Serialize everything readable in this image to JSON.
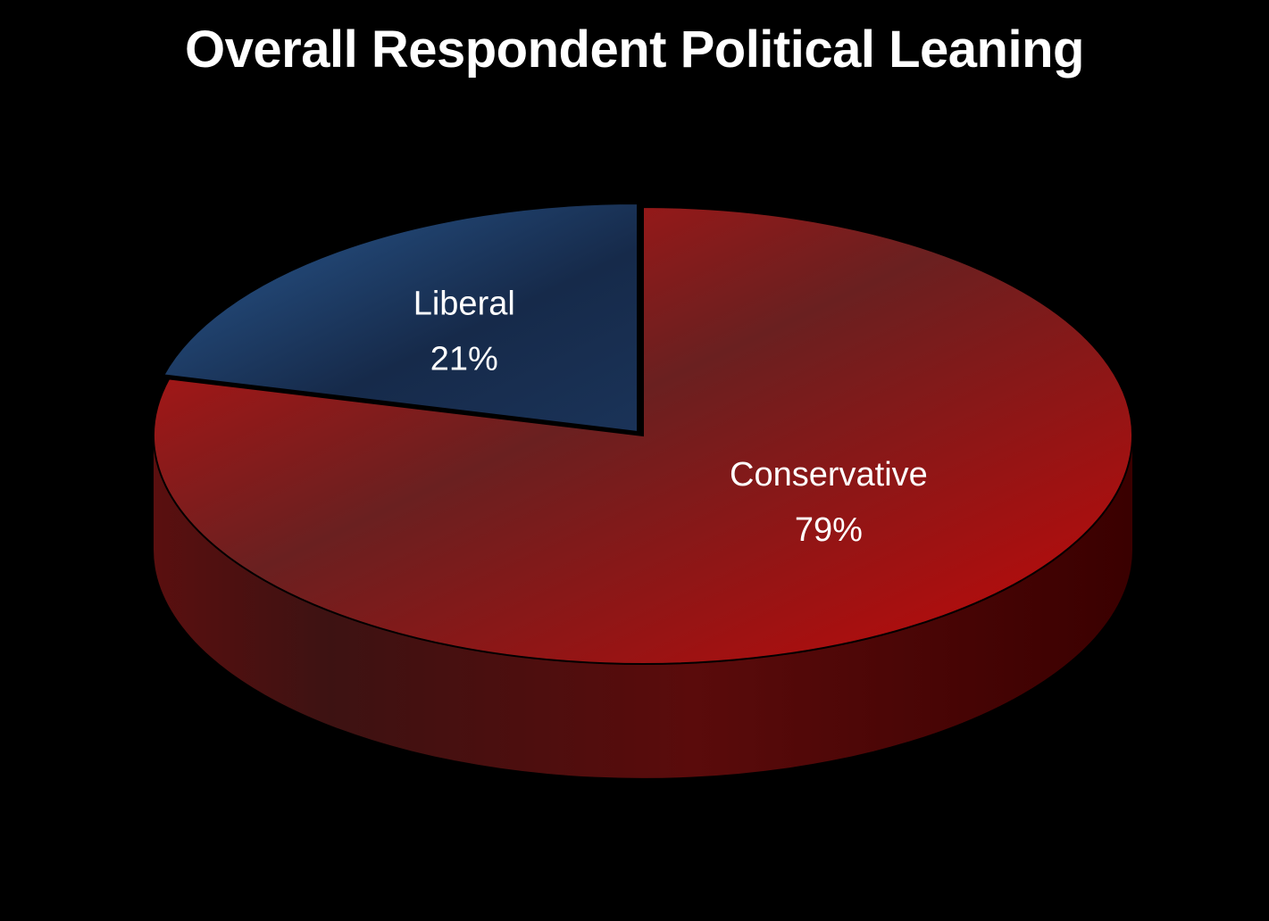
{
  "chart_data": {
    "type": "pie",
    "title": "Overall Respondent Political Leaning",
    "slices": [
      {
        "label": "Liberal",
        "value": 21,
        "value_label": "21%",
        "color": "#1c3c6a"
      },
      {
        "label": "Conservative",
        "value": 79,
        "value_label": "79%",
        "color": "#b01010"
      }
    ]
  }
}
